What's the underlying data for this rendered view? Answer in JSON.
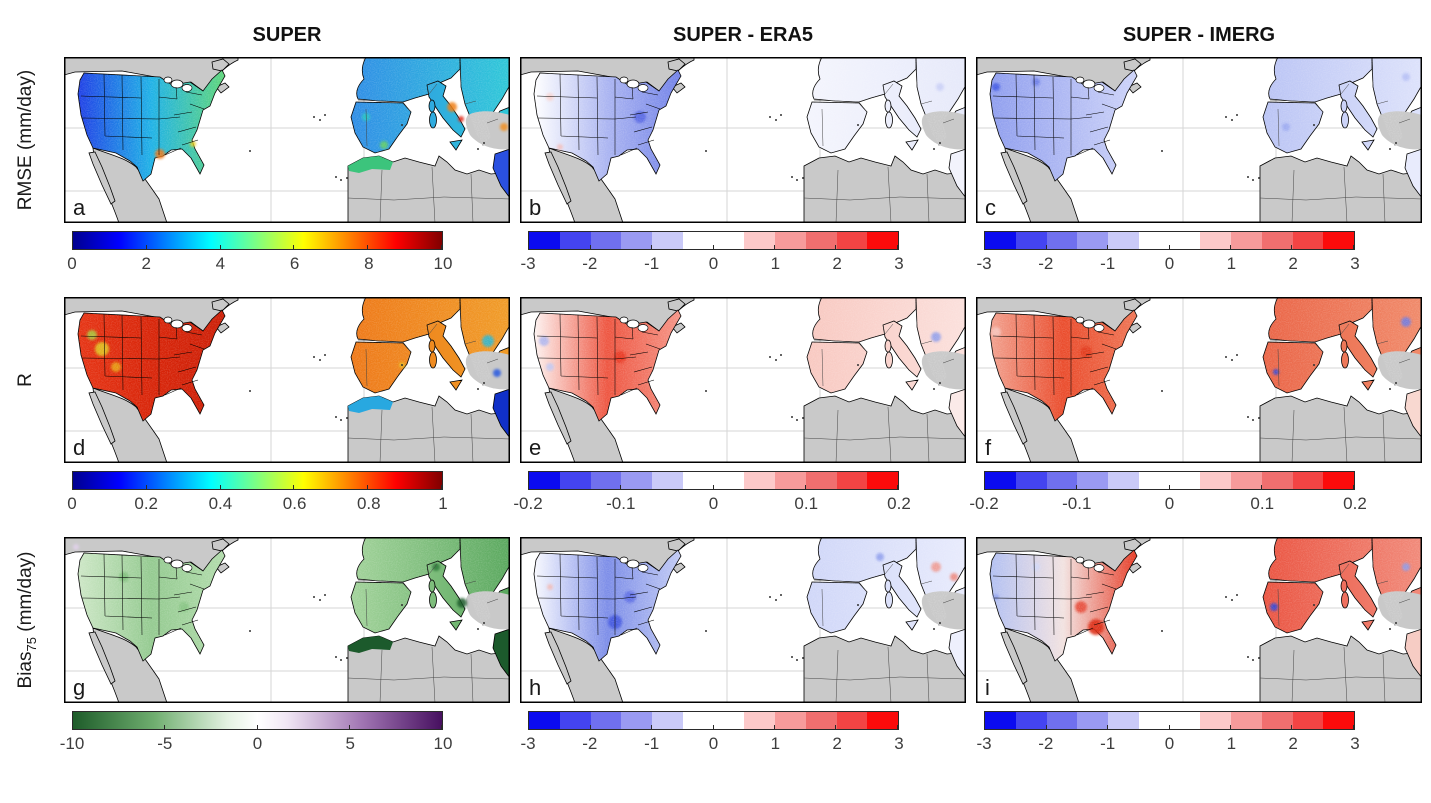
{
  "figure": {
    "columns": [
      {
        "title": "SUPER"
      },
      {
        "title": "SUPER - ERA5"
      },
      {
        "title": "SUPER - IMERG"
      }
    ],
    "rows": [
      {
        "pre": "RMSE (mm/day)",
        "sub": "",
        "post": ""
      },
      {
        "pre": "R",
        "sub": "",
        "post": ""
      },
      {
        "pre": "Bias",
        "sub": "75",
        "post": " (mm/day)"
      }
    ]
  },
  "colors": {
    "ocean": "#ffffff",
    "land": "#c9c9c9",
    "grid": "#d6d6d6",
    "frame": "#000000",
    "border": "#000000",
    "tick_label": "#3d3d3d",
    "jet_stops": [
      {
        "p": 0,
        "c": "#00008f"
      },
      {
        "p": 0.125,
        "c": "#0000ff"
      },
      {
        "p": 0.375,
        "c": "#00ffff"
      },
      {
        "p": 0.5,
        "c": "#80ff80"
      },
      {
        "p": 0.625,
        "c": "#ffff00"
      },
      {
        "p": 0.875,
        "c": "#ff0000"
      },
      {
        "p": 1,
        "c": "#800000"
      }
    ],
    "prgn_stops": [
      {
        "p": 0,
        "c": "#1e5c2a"
      },
      {
        "p": 0.22,
        "c": "#6fae6f"
      },
      {
        "p": 0.42,
        "c": "#e4f2e2"
      },
      {
        "p": 0.5,
        "c": "#ffffff"
      },
      {
        "p": 0.58,
        "c": "#f0e6f4"
      },
      {
        "p": 0.78,
        "c": "#a277b4"
      },
      {
        "p": 1,
        "c": "#471060"
      }
    ],
    "diverging_segments": [
      "#0b0bf0",
      "#4444f0",
      "#7070ee",
      "#9a9af2",
      "#cacaf8",
      "#ffffff",
      "#ffffff",
      "#fcc9c9",
      "#f79b9b",
      "#f06f6f",
      "#f34444",
      "#fb0b0b"
    ]
  },
  "panels": [
    {
      "letter": "a",
      "colorbar": {
        "type": "jet",
        "ticks": [
          "0",
          "2",
          "4",
          "6",
          "8",
          "10"
        ]
      },
      "map": {
        "us": [
          "#2040e6",
          "#1fb2e6",
          "#5fd67a"
        ],
        "eu": [
          "#2f8ce6",
          "#2fc8d8"
        ],
        "africa_strip": "#3cc47c",
        "mideast": "#2a50e0",
        "accents": [
          [
            96,
            97,
            5,
            "#f07818"
          ],
          [
            129,
            87,
            3,
            "#e8d020"
          ],
          [
            388,
            50,
            5,
            "#f08018"
          ],
          [
            397,
            62,
            3,
            "#e02818"
          ],
          [
            440,
            70,
            4,
            "#f09020"
          ],
          [
            320,
            88,
            4,
            "#66d060"
          ],
          [
            302,
            60,
            4,
            "#28c8c0"
          ]
        ]
      }
    },
    {
      "letter": "b",
      "colorbar": {
        "type": "diverging",
        "ticks": [
          "-3",
          "-2",
          "-1",
          "0",
          "1",
          "2",
          "3"
        ]
      },
      "map": {
        "us": [
          "#ffffff",
          "#aab4f1",
          "#7282e8"
        ],
        "eu": [
          "#f4f5fd",
          "#e6e9fa"
        ],
        "africa_strip": null,
        "mideast": "#f2f3fc",
        "accents": [
          [
            30,
            40,
            4,
            "#f8d2cf"
          ],
          [
            120,
            60,
            6,
            "#5565e2"
          ],
          [
            420,
            30,
            4,
            "#c8cef6"
          ],
          [
            40,
            90,
            3,
            "#f4bcb8"
          ]
        ]
      }
    },
    {
      "letter": "c",
      "colorbar": {
        "type": "diverging",
        "ticks": [
          "-3",
          "-2",
          "-1",
          "0",
          "1",
          "2",
          "3"
        ]
      },
      "map": {
        "us": [
          "#8f9eee",
          "#aeb8f3",
          "#cdd3f8"
        ],
        "eu": [
          "#b9c3f4",
          "#dde2fb"
        ],
        "africa_strip": null,
        "mideast": "#e8ebfc",
        "accents": [
          [
            20,
            30,
            4,
            "#3c54e2"
          ],
          [
            310,
            70,
            4,
            "#9aa8f0"
          ],
          [
            430,
            20,
            4,
            "#b4bef4"
          ],
          [
            60,
            25,
            4,
            "#6b7ce6"
          ]
        ]
      }
    },
    {
      "letter": "d",
      "colorbar": {
        "type": "jet",
        "ticks": [
          "0",
          "0.2",
          "0.4",
          "0.6",
          "0.8",
          "1"
        ]
      },
      "map": {
        "us": [
          "#e63414",
          "#d82408",
          "#cc1e06"
        ],
        "eu": [
          "#ee7818",
          "#f09c28"
        ],
        "africa_strip": "#28a8e0",
        "mideast": "#1030c8",
        "accents": [
          [
            38,
            52,
            7,
            "#e0cc20"
          ],
          [
            28,
            38,
            5,
            "#a8d040"
          ],
          [
            52,
            70,
            5,
            "#e8a818"
          ],
          [
            424,
            44,
            6,
            "#28b8d8"
          ],
          [
            433,
            76,
            4,
            "#2858e0"
          ],
          [
            338,
            68,
            3,
            "#e8c020"
          ]
        ]
      }
    },
    {
      "letter": "e",
      "colorbar": {
        "type": "diverging",
        "ticks": [
          "-0.2",
          "-0.1",
          "0",
          "0.1",
          "0.2"
        ]
      },
      "map": {
        "us": [
          "#fdf3f1",
          "#ee5540",
          "#f59688"
        ],
        "eu": [
          "#f8c8c0",
          "#fbe0dc"
        ],
        "africa_strip": null,
        "mideast": "#fbeae8",
        "accents": [
          [
            24,
            44,
            5,
            "#aab4f0"
          ],
          [
            30,
            70,
            4,
            "#c0c8f4"
          ],
          [
            416,
            40,
            5,
            "#8c9cec"
          ],
          [
            100,
            60,
            6,
            "#e83824"
          ]
        ]
      }
    },
    {
      "letter": "f",
      "colorbar": {
        "type": "diverging",
        "ticks": [
          "-0.2",
          "-0.1",
          "0",
          "0.1",
          "0.2"
        ]
      },
      "map": {
        "us": [
          "#f2a290",
          "#ea4c2c",
          "#ef7656"
        ],
        "eu": [
          "#ea6446",
          "#f08a6a"
        ],
        "africa_strip": null,
        "mideast": "#f8d8d0",
        "accents": [
          [
            20,
            35,
            5,
            "#f6c6be"
          ],
          [
            430,
            25,
            5,
            "#6c7ce6"
          ],
          [
            300,
            75,
            3,
            "#2846e0"
          ],
          [
            110,
            55,
            6,
            "#e23a1e"
          ]
        ]
      }
    },
    {
      "letter": "g",
      "colorbar": {
        "type": "prgn",
        "ticks": [
          "-10",
          "-5",
          "0",
          "5",
          "10"
        ]
      },
      "map": {
        "us": [
          "#cde7c6",
          "#94ca90",
          "#b2dcac"
        ],
        "eu": [
          "#a4d49c",
          "#5aa85e"
        ],
        "africa_strip": "#1c5a2c",
        "mideast": "#1c5a2c",
        "accents": [
          [
            398,
            66,
            5,
            "#1c5a2c"
          ],
          [
            372,
            30,
            4,
            "#2e7a3a"
          ],
          [
            60,
            40,
            5,
            "#7cbc78"
          ],
          [
            120,
            70,
            5,
            "#86c482"
          ],
          [
            12,
            10,
            3,
            "#e2d2ec"
          ]
        ]
      }
    },
    {
      "letter": "h",
      "colorbar": {
        "type": "diverging",
        "ticks": [
          "-3",
          "-2",
          "-1",
          "0",
          "1",
          "2",
          "3"
        ]
      },
      "map": {
        "us": [
          "#f8f9fe",
          "#7c8de8",
          "#c2cbf4"
        ],
        "eu": [
          "#cfd6f8",
          "#e8ebfc"
        ],
        "africa_strip": null,
        "mideast": "#eef0fd",
        "accents": [
          [
            95,
            85,
            7,
            "#4154e0"
          ],
          [
            110,
            60,
            6,
            "#5c6ce4"
          ],
          [
            416,
            30,
            5,
            "#f0968c"
          ],
          [
            434,
            40,
            4,
            "#ee8478"
          ],
          [
            360,
            20,
            4,
            "#8c9cec"
          ],
          [
            30,
            50,
            3,
            "#f2b8b2"
          ]
        ]
      }
    },
    {
      "letter": "i",
      "colorbar": {
        "type": "diverging",
        "ticks": [
          "-3",
          "-2",
          "-1",
          "0",
          "1",
          "2",
          "3"
        ]
      },
      "map": {
        "us": [
          "#b2c0f2",
          "#f2e2e0",
          "#e63a24"
        ],
        "eu": [
          "#ea5340",
          "#f18a7a"
        ],
        "africa_strip": null,
        "mideast": "#f6ccc4",
        "accents": [
          [
            120,
            90,
            8,
            "#dc2810"
          ],
          [
            105,
            70,
            6,
            "#e64530"
          ],
          [
            298,
            70,
            4,
            "#2846e0"
          ],
          [
            430,
            30,
            4,
            "#8c9cec"
          ],
          [
            20,
            60,
            3,
            "#8c9cec"
          ],
          [
            60,
            30,
            4,
            "#d0d8f8"
          ]
        ]
      }
    }
  ],
  "chart_data": {
    "type": "heatmap",
    "subtype": "geographic map panel grid (3 rows x 3 columns)",
    "regions_shown": [
      "CONUS / North America (left half of each panel)",
      "Europe & Mediterranean (right half of each panel)"
    ],
    "columns": [
      "SUPER",
      "SUPER - ERA5",
      "SUPER - IMERG"
    ],
    "rows": [
      "RMSE (mm/day)",
      "R",
      "Bias75 (mm/day)"
    ],
    "panels": [
      {
        "letter": "a",
        "row": "RMSE (mm/day)",
        "column": "SUPER",
        "colormap": "jet",
        "range": [
          0,
          10
        ],
        "ticks": [
          0,
          2,
          4,
          6,
          8,
          10
        ],
        "summary": "RMSE ~1-3 mm/day over western CONUS (blue), 3-6 over central/eastern CONUS (cyan-green), local maxima 6-10 along the Gulf Coast; Europe mostly 2-5 with orange/red maxima over the Alps, Adriatic and Turkish coasts; data strip along NW African coast; gray = no data"
      },
      {
        "letter": "b",
        "row": "RMSE (mm/day)",
        "column": "SUPER - ERA5",
        "colormap": "discrete blue-white-red",
        "range": [
          -3,
          3
        ],
        "ticks": [
          -3,
          -2,
          -1,
          0,
          1,
          2,
          3
        ],
        "summary": "RMSE difference mostly -1.5 to 0 mm/day (blue, SUPER lower) over central and eastern CONUS; near zero (white) over western CONUS and most of Europe"
      },
      {
        "letter": "c",
        "row": "RMSE (mm/day)",
        "column": "SUPER - IMERG",
        "colormap": "discrete blue-white-red",
        "range": [
          -3,
          3
        ],
        "ticks": [
          -3,
          -2,
          -1,
          0,
          1,
          2,
          3
        ],
        "summary": "RMSE difference -2 to -0.5 mm/day (blue) over nearly all of CONUS and over Iberia/Europe; SUPER lower RMSE than IMERG almost everywhere"
      },
      {
        "letter": "d",
        "row": "R",
        "column": "SUPER",
        "colormap": "jet",
        "range": [
          0,
          1
        ],
        "ticks": [
          0,
          0.2,
          0.4,
          0.6,
          0.8,
          1
        ],
        "summary": "Correlation 0.8-1 (dark red) over most of CONUS with 0.5-0.7 (yellow/green) patches in the interior west; 0.6-0.8 (orange) over western/central Europe; 0.2-0.5 (cyan/blue) along NW Africa and the Middle East"
      },
      {
        "letter": "e",
        "row": "R",
        "column": "SUPER - ERA5",
        "colormap": "discrete blue-white-red",
        "range": [
          -0.2,
          0.2
        ],
        "ticks": [
          -0.2,
          -0.1,
          0,
          0.1,
          0.2
        ],
        "summary": "R improvement +0.05 to +0.15 (red) over the central and eastern CONUS; near zero to slightly positive over Europe, small negative patches in mountain west and Balkans"
      },
      {
        "letter": "f",
        "row": "R",
        "column": "SUPER - IMERG",
        "colormap": "discrete blue-white-red",
        "range": [
          -0.2,
          0.2
        ],
        "ticks": [
          -0.2,
          -0.1,
          0,
          0.1,
          0.2
        ],
        "summary": "R improvement +0.1 to +0.2 (red) over most of CONUS and Mediterranean Europe; scattered negative (blue) spots near coasts"
      },
      {
        "letter": "g",
        "row": "Bias75 (mm/day)",
        "column": "SUPER",
        "colormap": "green-white-purple diverging",
        "range": [
          -10,
          10
        ],
        "ticks": [
          -10,
          -5,
          0,
          5,
          10
        ],
        "summary": "Bias75 about -2 to -6 mm/day (green, underestimation of heavy precipitation) over CONUS and Europe; strongest negative (~-10, dark green) along the NW African coast, Adriatic and Middle East"
      },
      {
        "letter": "h",
        "row": "Bias75 (mm/day)",
        "column": "SUPER - ERA5",
        "colormap": "discrete blue-white-red",
        "range": [
          -3,
          3
        ],
        "ticks": [
          -3,
          -2,
          -1,
          0,
          1,
          2,
          3
        ],
        "summary": "Bias75 difference -2 to 0 (blue) over central/southeastern CONUS; mixed light blue and red over Europe with red over the Balkans"
      },
      {
        "letter": "i",
        "row": "Bias75 (mm/day)",
        "column": "SUPER - IMERG",
        "colormap": "discrete blue-white-red",
        "range": [
          -3,
          3
        ],
        "ticks": [
          -3,
          -2,
          -1,
          0,
          1,
          2,
          3
        ],
        "summary": "Bias75 difference +1 to +3 (red) over southeastern CONUS and southern Europe; slightly negative (light blue) over the western CONUS and Portugal"
      }
    ]
  }
}
